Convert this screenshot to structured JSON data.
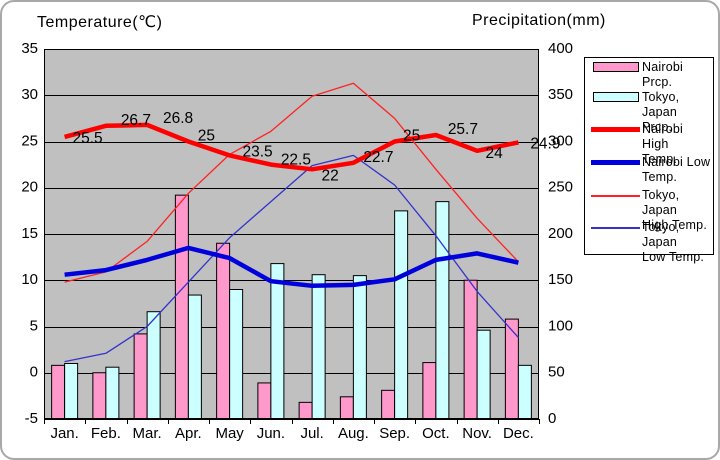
{
  "frame": {
    "left_axis_title": "Temperature(℃)",
    "right_axis_title": "Precipitation(mm)"
  },
  "chart_data": {
    "type": "combo-bar-line",
    "categories": [
      "Jan.",
      "Feb.",
      "Mar.",
      "Apr.",
      "May",
      "Jun.",
      "Jul.",
      "Aug.",
      "Sep.",
      "Oct.",
      "Nov.",
      "Dec."
    ],
    "left_axis": {
      "title": "Temperature(℃)",
      "min": -5,
      "max": 35,
      "step": 5,
      "ticks": [
        35,
        30,
        25,
        20,
        15,
        10,
        5,
        0,
        -5
      ]
    },
    "right_axis": {
      "title": "Precipitation(mm)",
      "min": 0,
      "max": 400,
      "step": 50,
      "ticks": [
        400,
        350,
        300,
        250,
        200,
        150,
        100,
        50,
        0
      ]
    },
    "grid": "horizontal-on",
    "legend_position": "right",
    "plot_bg_color": "#c0c0c0",
    "series": [
      {
        "name": "Nairobi Prcp.",
        "type": "bar",
        "axis": "right",
        "color": "#ff99cc",
        "values": [
          58,
          50,
          92,
          242,
          190,
          39,
          18,
          24,
          31,
          61,
          150,
          108
        ]
      },
      {
        "name": "Tokyo, Japan Prcp.",
        "type": "bar",
        "axis": "right",
        "color": "#ccffff",
        "values": [
          60,
          56,
          116,
          134,
          140,
          168,
          156,
          155,
          225,
          235,
          96,
          58
        ]
      },
      {
        "name": "Tokyo, Japan High Temp.",
        "type": "line",
        "axis": "left",
        "color": "#ff2222",
        "stroke_width": 1.3,
        "values": [
          9.8,
          10.9,
          14.2,
          19.4,
          23.6,
          26.1,
          29.9,
          31.3,
          27.5,
          22.0,
          16.7,
          12.0
        ]
      },
      {
        "name": "Tokyo, Japan Low Temp.",
        "type": "line",
        "axis": "left",
        "color": "#3333cc",
        "stroke_width": 1.3,
        "values": [
          1.2,
          2.1,
          5.0,
          9.8,
          14.6,
          18.5,
          22.4,
          23.5,
          20.3,
          14.8,
          8.8,
          3.8
        ]
      },
      {
        "name": "Nairobi High Temp.",
        "type": "line",
        "axis": "left",
        "color": "#ff0000",
        "stroke_width": 4.5,
        "values": [
          25.5,
          26.7,
          26.8,
          25,
          23.5,
          22.5,
          22,
          22.7,
          25,
          25.7,
          24,
          24.9
        ],
        "data_labels": [
          "25.5",
          "26.7",
          "26.8",
          "25",
          "23.5",
          "22.5",
          "22",
          "22.7",
          "25",
          "25.7",
          "24",
          "24.9"
        ]
      },
      {
        "name": "Nairobi Low Temp.",
        "type": "line",
        "axis": "left",
        "color": "#0000dd",
        "stroke_width": 4.5,
        "values": [
          10.6,
          11.1,
          12.2,
          13.5,
          12.4,
          9.9,
          9.4,
          9.5,
          10.1,
          12.2,
          12.9,
          11.9
        ]
      }
    ]
  },
  "legend": {
    "items": [
      {
        "id": "nairobi-prcp",
        "lines": [
          "Nairobi Prcp."
        ],
        "swatch": "box",
        "color": "#ff99cc"
      },
      {
        "id": "tokyo-prcp",
        "lines": [
          "Tokyo, Japan",
          "Prcp."
        ],
        "swatch": "box",
        "color": "#ccffff"
      },
      {
        "id": "nairobi-high-temp",
        "lines": [
          "Nairobi High",
          "Temp."
        ],
        "swatch": "thick",
        "color": "#ff0000"
      },
      {
        "id": "nairobi-low-temp",
        "lines": [
          "Nairobi Low",
          "Temp."
        ],
        "swatch": "thick",
        "color": "#0000dd"
      },
      {
        "id": "tokyo-high-temp",
        "lines": [
          "Tokyo, Japan",
          "High Temp."
        ],
        "swatch": "thin",
        "color": "#ff2222"
      },
      {
        "id": "tokyo-low-temp",
        "lines": [
          "Tokyo, Japan",
          "Low Temp."
        ],
        "swatch": "thin",
        "color": "#3333cc"
      }
    ]
  }
}
